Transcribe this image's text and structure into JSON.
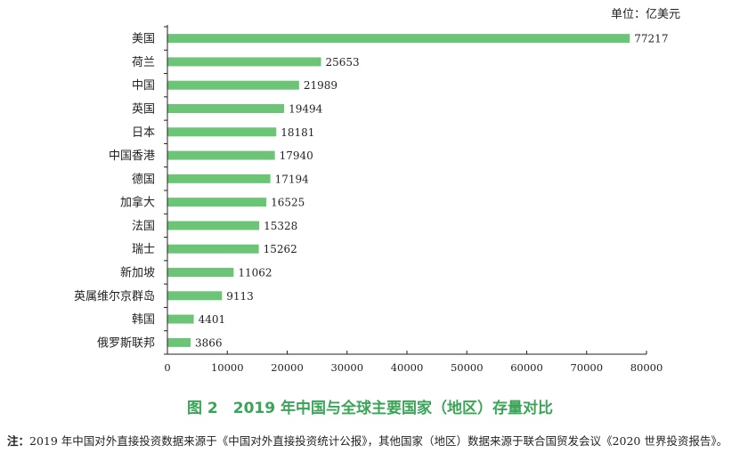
{
  "chart_data": {
    "type": "bar",
    "orientation": "horizontal",
    "unit_label": "单位：亿美元",
    "categories": [
      "美国",
      "荷兰",
      "中国",
      "英国",
      "日本",
      "中国香港",
      "德国",
      "加拿大",
      "法国",
      "瑞士",
      "新加坡",
      "英属维尔京群岛",
      "韩国",
      "俄罗斯联邦"
    ],
    "values": [
      77217,
      25653,
      21989,
      19494,
      18181,
      17940,
      17194,
      16525,
      15328,
      15262,
      11062,
      9113,
      4401,
      3866
    ],
    "value_labels": [
      "77217",
      "25653",
      "21989",
      "19494",
      "18181",
      "17940",
      "17194",
      "16525",
      "15328",
      "15262",
      "11062",
      "9113",
      "4401",
      "3866"
    ],
    "xlim": [
      0,
      80000
    ],
    "xticks": [
      "0",
      "10000",
      "20000",
      "30000",
      "40000",
      "50000",
      "60000",
      "70000",
      "80000"
    ],
    "xtick_values": [
      0,
      10000,
      20000,
      30000,
      40000,
      50000,
      60000,
      70000,
      80000
    ],
    "bar_color": "#6cc477",
    "grid": false
  },
  "figure": {
    "title": "图 2　2019 年中国与全球主要国家（地区）存量对比",
    "title_color": "#3aa457"
  },
  "note": {
    "prefix": "注：",
    "text": "2019 年中国对外直接投资数据来源于《中国对外直接投资统计公报》，其他国家（地区）数据来源于联合国贸发会议《2020 世界投资报告》。"
  }
}
